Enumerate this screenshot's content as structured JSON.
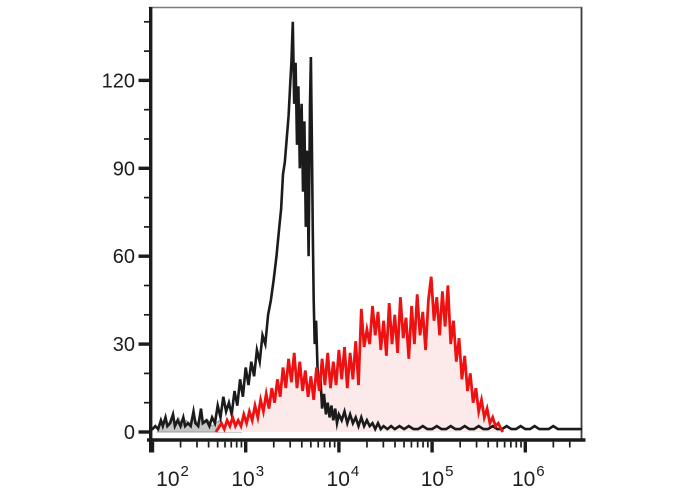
{
  "figure": {
    "background": "#ffffff",
    "top_border_color": "#7a7a7a",
    "right_border_color": "#3a3a3a",
    "axis_color": "#1b1b1b",
    "tick_label_color": "#1d1d1d"
  },
  "chart_data": {
    "type": "area",
    "subtype": "flow-cytometry-overlay-histogram",
    "title": "",
    "xlabel": "",
    "ylabel": "",
    "x_scale": "log10",
    "x_units": "log10(fluorescence intensity)",
    "x_range_log10": [
      1.97,
      6.61
    ],
    "ylim": [
      0,
      145
    ],
    "grid": false,
    "legend_position": "none",
    "x_major_tick_exponents": [
      2,
      3,
      4,
      5,
      6
    ],
    "x_tick_label_base": "10",
    "x_minor_mantissas": [
      2,
      3,
      4,
      5,
      6,
      7,
      8,
      9
    ],
    "y_major_ticks": [
      0,
      30,
      60,
      90,
      120
    ],
    "y_minor_step": 10,
    "y_minor_max": 140,
    "series": [
      {
        "name": "gray-control-filled",
        "style": "filled",
        "fill": "#c6c6c6",
        "stroke": "#9a9a9a",
        "stroke_width": 1,
        "points": [
          [
            2.05,
            0
          ],
          [
            2.08,
            2
          ],
          [
            2.12,
            4
          ],
          [
            2.16,
            2
          ],
          [
            2.2,
            5
          ],
          [
            2.24,
            3
          ],
          [
            2.28,
            5
          ],
          [
            2.32,
            2
          ],
          [
            2.36,
            4
          ],
          [
            2.4,
            3
          ],
          [
            2.44,
            6
          ],
          [
            2.48,
            3
          ],
          [
            2.52,
            5
          ],
          [
            2.56,
            3
          ],
          [
            2.6,
            4
          ],
          [
            2.64,
            2
          ],
          [
            2.68,
            3
          ],
          [
            2.72,
            4
          ],
          [
            2.76,
            2
          ],
          [
            2.8,
            3
          ],
          [
            2.84,
            1
          ],
          [
            2.88,
            2
          ],
          [
            2.92,
            1
          ],
          [
            2.95,
            0
          ]
        ]
      },
      {
        "name": "red-stained-filled",
        "style": "filled-outline",
        "fill": "#fceaea",
        "stroke": "#ee1111",
        "stroke_width": 2.8,
        "points": [
          [
            2.68,
            0
          ],
          [
            2.7,
            1
          ],
          [
            2.74,
            3
          ],
          [
            2.77,
            1
          ],
          [
            2.8,
            4
          ],
          [
            2.83,
            2
          ],
          [
            2.86,
            5
          ],
          [
            2.89,
            2
          ],
          [
            2.92,
            4
          ],
          [
            2.95,
            2
          ],
          [
            2.98,
            6
          ],
          [
            3.01,
            3
          ],
          [
            3.04,
            7
          ],
          [
            3.07,
            4
          ],
          [
            3.1,
            9
          ],
          [
            3.13,
            5
          ],
          [
            3.16,
            11
          ],
          [
            3.19,
            7
          ],
          [
            3.22,
            13
          ],
          [
            3.25,
            8
          ],
          [
            3.28,
            15
          ],
          [
            3.31,
            10
          ],
          [
            3.34,
            18
          ],
          [
            3.37,
            12
          ],
          [
            3.4,
            22
          ],
          [
            3.43,
            15
          ],
          [
            3.46,
            25
          ],
          [
            3.49,
            17
          ],
          [
            3.52,
            27
          ],
          [
            3.55,
            15
          ],
          [
            3.58,
            24
          ],
          [
            3.61,
            14
          ],
          [
            3.64,
            21
          ],
          [
            3.67,
            12
          ],
          [
            3.7,
            19
          ],
          [
            3.73,
            11
          ],
          [
            3.76,
            22
          ],
          [
            3.79,
            14
          ],
          [
            3.82,
            25
          ],
          [
            3.85,
            16
          ],
          [
            3.88,
            27
          ],
          [
            3.91,
            15
          ],
          [
            3.94,
            24
          ],
          [
            3.97,
            16
          ],
          [
            4.0,
            28
          ],
          [
            4.03,
            18
          ],
          [
            4.06,
            29
          ],
          [
            4.09,
            15
          ],
          [
            4.12,
            27
          ],
          [
            4.15,
            18
          ],
          [
            4.18,
            31
          ],
          [
            4.21,
            16
          ],
          [
            4.24,
            42
          ],
          [
            4.27,
            29
          ],
          [
            4.3,
            35
          ],
          [
            4.33,
            30
          ],
          [
            4.36,
            43
          ],
          [
            4.39,
            33
          ],
          [
            4.42,
            41
          ],
          [
            4.45,
            28
          ],
          [
            4.48,
            38
          ],
          [
            4.51,
            26
          ],
          [
            4.54,
            44
          ],
          [
            4.57,
            30
          ],
          [
            4.6,
            40
          ],
          [
            4.63,
            27
          ],
          [
            4.66,
            46
          ],
          [
            4.69,
            32
          ],
          [
            4.72,
            39
          ],
          [
            4.75,
            25
          ],
          [
            4.78,
            43
          ],
          [
            4.81,
            30
          ],
          [
            4.84,
            47
          ],
          [
            4.87,
            33
          ],
          [
            4.9,
            41
          ],
          [
            4.93,
            28
          ],
          [
            4.96,
            45
          ],
          [
            4.99,
            53
          ],
          [
            5.02,
            38
          ],
          [
            5.05,
            46
          ],
          [
            5.08,
            33
          ],
          [
            5.11,
            48
          ],
          [
            5.14,
            36
          ],
          [
            5.17,
            50
          ],
          [
            5.2,
            30
          ],
          [
            5.23,
            38
          ],
          [
            5.26,
            24
          ],
          [
            5.29,
            32
          ],
          [
            5.32,
            18
          ],
          [
            5.35,
            26
          ],
          [
            5.38,
            14
          ],
          [
            5.41,
            20
          ],
          [
            5.44,
            10
          ],
          [
            5.47,
            15
          ],
          [
            5.5,
            7
          ],
          [
            5.53,
            11
          ],
          [
            5.56,
            5
          ],
          [
            5.59,
            8
          ],
          [
            5.62,
            3
          ],
          [
            5.65,
            5
          ],
          [
            5.68,
            2
          ],
          [
            5.71,
            3
          ],
          [
            5.74,
            1
          ],
          [
            5.76,
            0
          ]
        ]
      },
      {
        "name": "black-open-histogram",
        "style": "outline",
        "fill": "none",
        "stroke": "#1b1b1b",
        "stroke_width": 2.6,
        "points": [
          [
            1.98,
            1
          ],
          [
            2.0,
            1
          ],
          [
            2.03,
            2
          ],
          [
            2.06,
            1
          ],
          [
            2.09,
            4
          ],
          [
            2.11,
            2
          ],
          [
            2.14,
            5
          ],
          [
            2.16,
            2
          ],
          [
            2.19,
            3
          ],
          [
            2.22,
            6
          ],
          [
            2.24,
            2
          ],
          [
            2.27,
            4
          ],
          [
            2.3,
            2
          ],
          [
            2.33,
            5
          ],
          [
            2.35,
            2
          ],
          [
            2.38,
            3
          ],
          [
            2.41,
            2
          ],
          [
            2.44,
            7
          ],
          [
            2.46,
            3
          ],
          [
            2.49,
            2
          ],
          [
            2.52,
            8
          ],
          [
            2.54,
            3
          ],
          [
            2.58,
            4
          ],
          [
            2.61,
            2
          ],
          [
            2.64,
            5
          ],
          [
            2.67,
            3
          ],
          [
            2.7,
            9
          ],
          [
            2.73,
            5
          ],
          [
            2.76,
            12
          ],
          [
            2.79,
            7
          ],
          [
            2.82,
            10
          ],
          [
            2.85,
            6
          ],
          [
            2.88,
            14
          ],
          [
            2.91,
            9
          ],
          [
            2.94,
            18
          ],
          [
            2.97,
            12
          ],
          [
            3.0,
            22
          ],
          [
            3.03,
            16
          ],
          [
            3.06,
            24
          ],
          [
            3.09,
            19
          ],
          [
            3.12,
            28
          ],
          [
            3.15,
            24
          ],
          [
            3.18,
            33
          ],
          [
            3.21,
            30
          ],
          [
            3.24,
            40
          ],
          [
            3.27,
            45
          ],
          [
            3.3,
            52
          ],
          [
            3.33,
            60
          ],
          [
            3.36,
            70
          ],
          [
            3.38,
            76
          ],
          [
            3.4,
            88
          ],
          [
            3.42,
            92
          ],
          [
            3.44,
            100
          ],
          [
            3.46,
            108
          ],
          [
            3.48,
            120
          ],
          [
            3.49,
            126
          ],
          [
            3.505,
            140
          ],
          [
            3.52,
            112
          ],
          [
            3.535,
            126
          ],
          [
            3.55,
            98
          ],
          [
            3.565,
            118
          ],
          [
            3.58,
            90
          ],
          [
            3.6,
            112
          ],
          [
            3.615,
            82
          ],
          [
            3.63,
            106
          ],
          [
            3.645,
            70
          ],
          [
            3.66,
            96
          ],
          [
            3.675,
            60
          ],
          [
            3.69,
            112
          ],
          [
            3.7,
            128
          ],
          [
            3.71,
            98
          ],
          [
            3.72,
            68
          ],
          [
            3.73,
            45
          ],
          [
            3.74,
            30
          ],
          [
            3.755,
            38
          ],
          [
            3.77,
            22
          ],
          [
            3.785,
            15
          ],
          [
            3.8,
            19
          ],
          [
            3.82,
            8
          ],
          [
            3.84,
            13
          ],
          [
            3.86,
            6
          ],
          [
            3.88,
            10
          ],
          [
            3.9,
            5
          ],
          [
            3.92,
            9
          ],
          [
            3.94,
            4
          ],
          [
            3.96,
            8
          ],
          [
            3.98,
            3
          ],
          [
            4.0,
            6
          ],
          [
            4.03,
            4
          ],
          [
            4.06,
            7
          ],
          [
            4.09,
            3
          ],
          [
            4.12,
            6
          ],
          [
            4.15,
            3
          ],
          [
            4.18,
            5
          ],
          [
            4.21,
            2
          ],
          [
            4.24,
            5
          ],
          [
            4.27,
            2
          ],
          [
            4.3,
            4
          ],
          [
            4.33,
            2
          ],
          [
            4.36,
            3
          ],
          [
            4.39,
            1
          ],
          [
            4.42,
            3
          ],
          [
            4.45,
            1
          ],
          [
            4.48,
            2
          ],
          [
            4.52,
            1
          ],
          [
            4.56,
            2
          ],
          [
            4.6,
            1
          ],
          [
            4.65,
            2
          ],
          [
            4.7,
            1
          ],
          [
            4.75,
            2
          ],
          [
            4.8,
            1
          ],
          [
            4.85,
            1
          ],
          [
            4.9,
            2
          ],
          [
            4.95,
            1
          ],
          [
            5.0,
            1
          ],
          [
            5.05,
            2
          ],
          [
            5.1,
            1
          ],
          [
            5.15,
            1
          ],
          [
            5.2,
            2
          ],
          [
            5.25,
            1
          ],
          [
            5.3,
            1
          ],
          [
            5.35,
            2
          ],
          [
            5.4,
            1
          ],
          [
            5.45,
            1
          ],
          [
            5.5,
            2
          ],
          [
            5.55,
            1
          ],
          [
            5.6,
            1
          ],
          [
            5.65,
            2
          ],
          [
            5.7,
            1
          ],
          [
            5.75,
            1
          ],
          [
            5.8,
            2
          ],
          [
            5.85,
            1
          ],
          [
            5.9,
            1
          ],
          [
            5.95,
            2
          ],
          [
            6.0,
            1
          ],
          [
            6.05,
            1
          ],
          [
            6.1,
            2
          ],
          [
            6.15,
            1
          ],
          [
            6.2,
            1
          ],
          [
            6.25,
            1
          ],
          [
            6.3,
            2
          ],
          [
            6.35,
            1
          ],
          [
            6.4,
            1
          ],
          [
            6.45,
            1
          ],
          [
            6.5,
            1
          ],
          [
            6.55,
            1
          ],
          [
            6.61,
            1
          ]
        ]
      }
    ]
  }
}
